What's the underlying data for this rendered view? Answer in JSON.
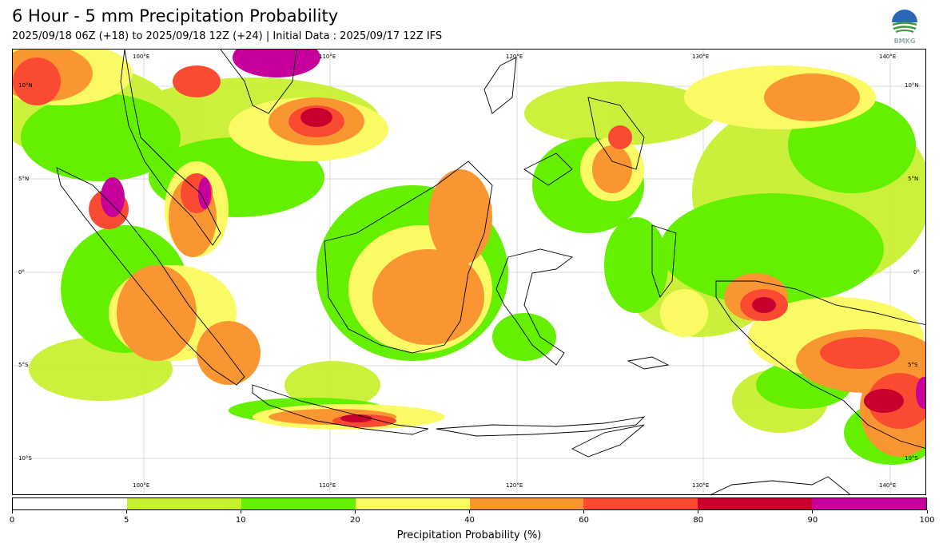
{
  "title": "6 Hour - 5 mm Precipitation Probability",
  "subtitle": "2025/09/18 06Z (+18) to 2025/09/18 12Z (+24) | Initial Data : 2025/09/17 12Z IFS",
  "logo": {
    "text": "BMKG",
    "icon": "bmkg-logo-icon"
  },
  "map": {
    "region": "Indonesia",
    "lon_labels": [
      "100°E",
      "110°E",
      "120°E",
      "130°E",
      "140°E"
    ],
    "lat_labels": [
      "10°N",
      "5°N",
      "0°",
      "5°S",
      "10°S"
    ],
    "grid": true
  },
  "colorbar": {
    "label": "Precipitation Probability (%)",
    "ticks": [
      "0",
      "5",
      "10",
      "20",
      "40",
      "60",
      "80",
      "90",
      "100"
    ],
    "colors": [
      "#ffffff",
      "#c8f032",
      "#64f000",
      "#fafa64",
      "#fa9632",
      "#fa4b32",
      "#c8002d",
      "#c8009b"
    ]
  }
}
